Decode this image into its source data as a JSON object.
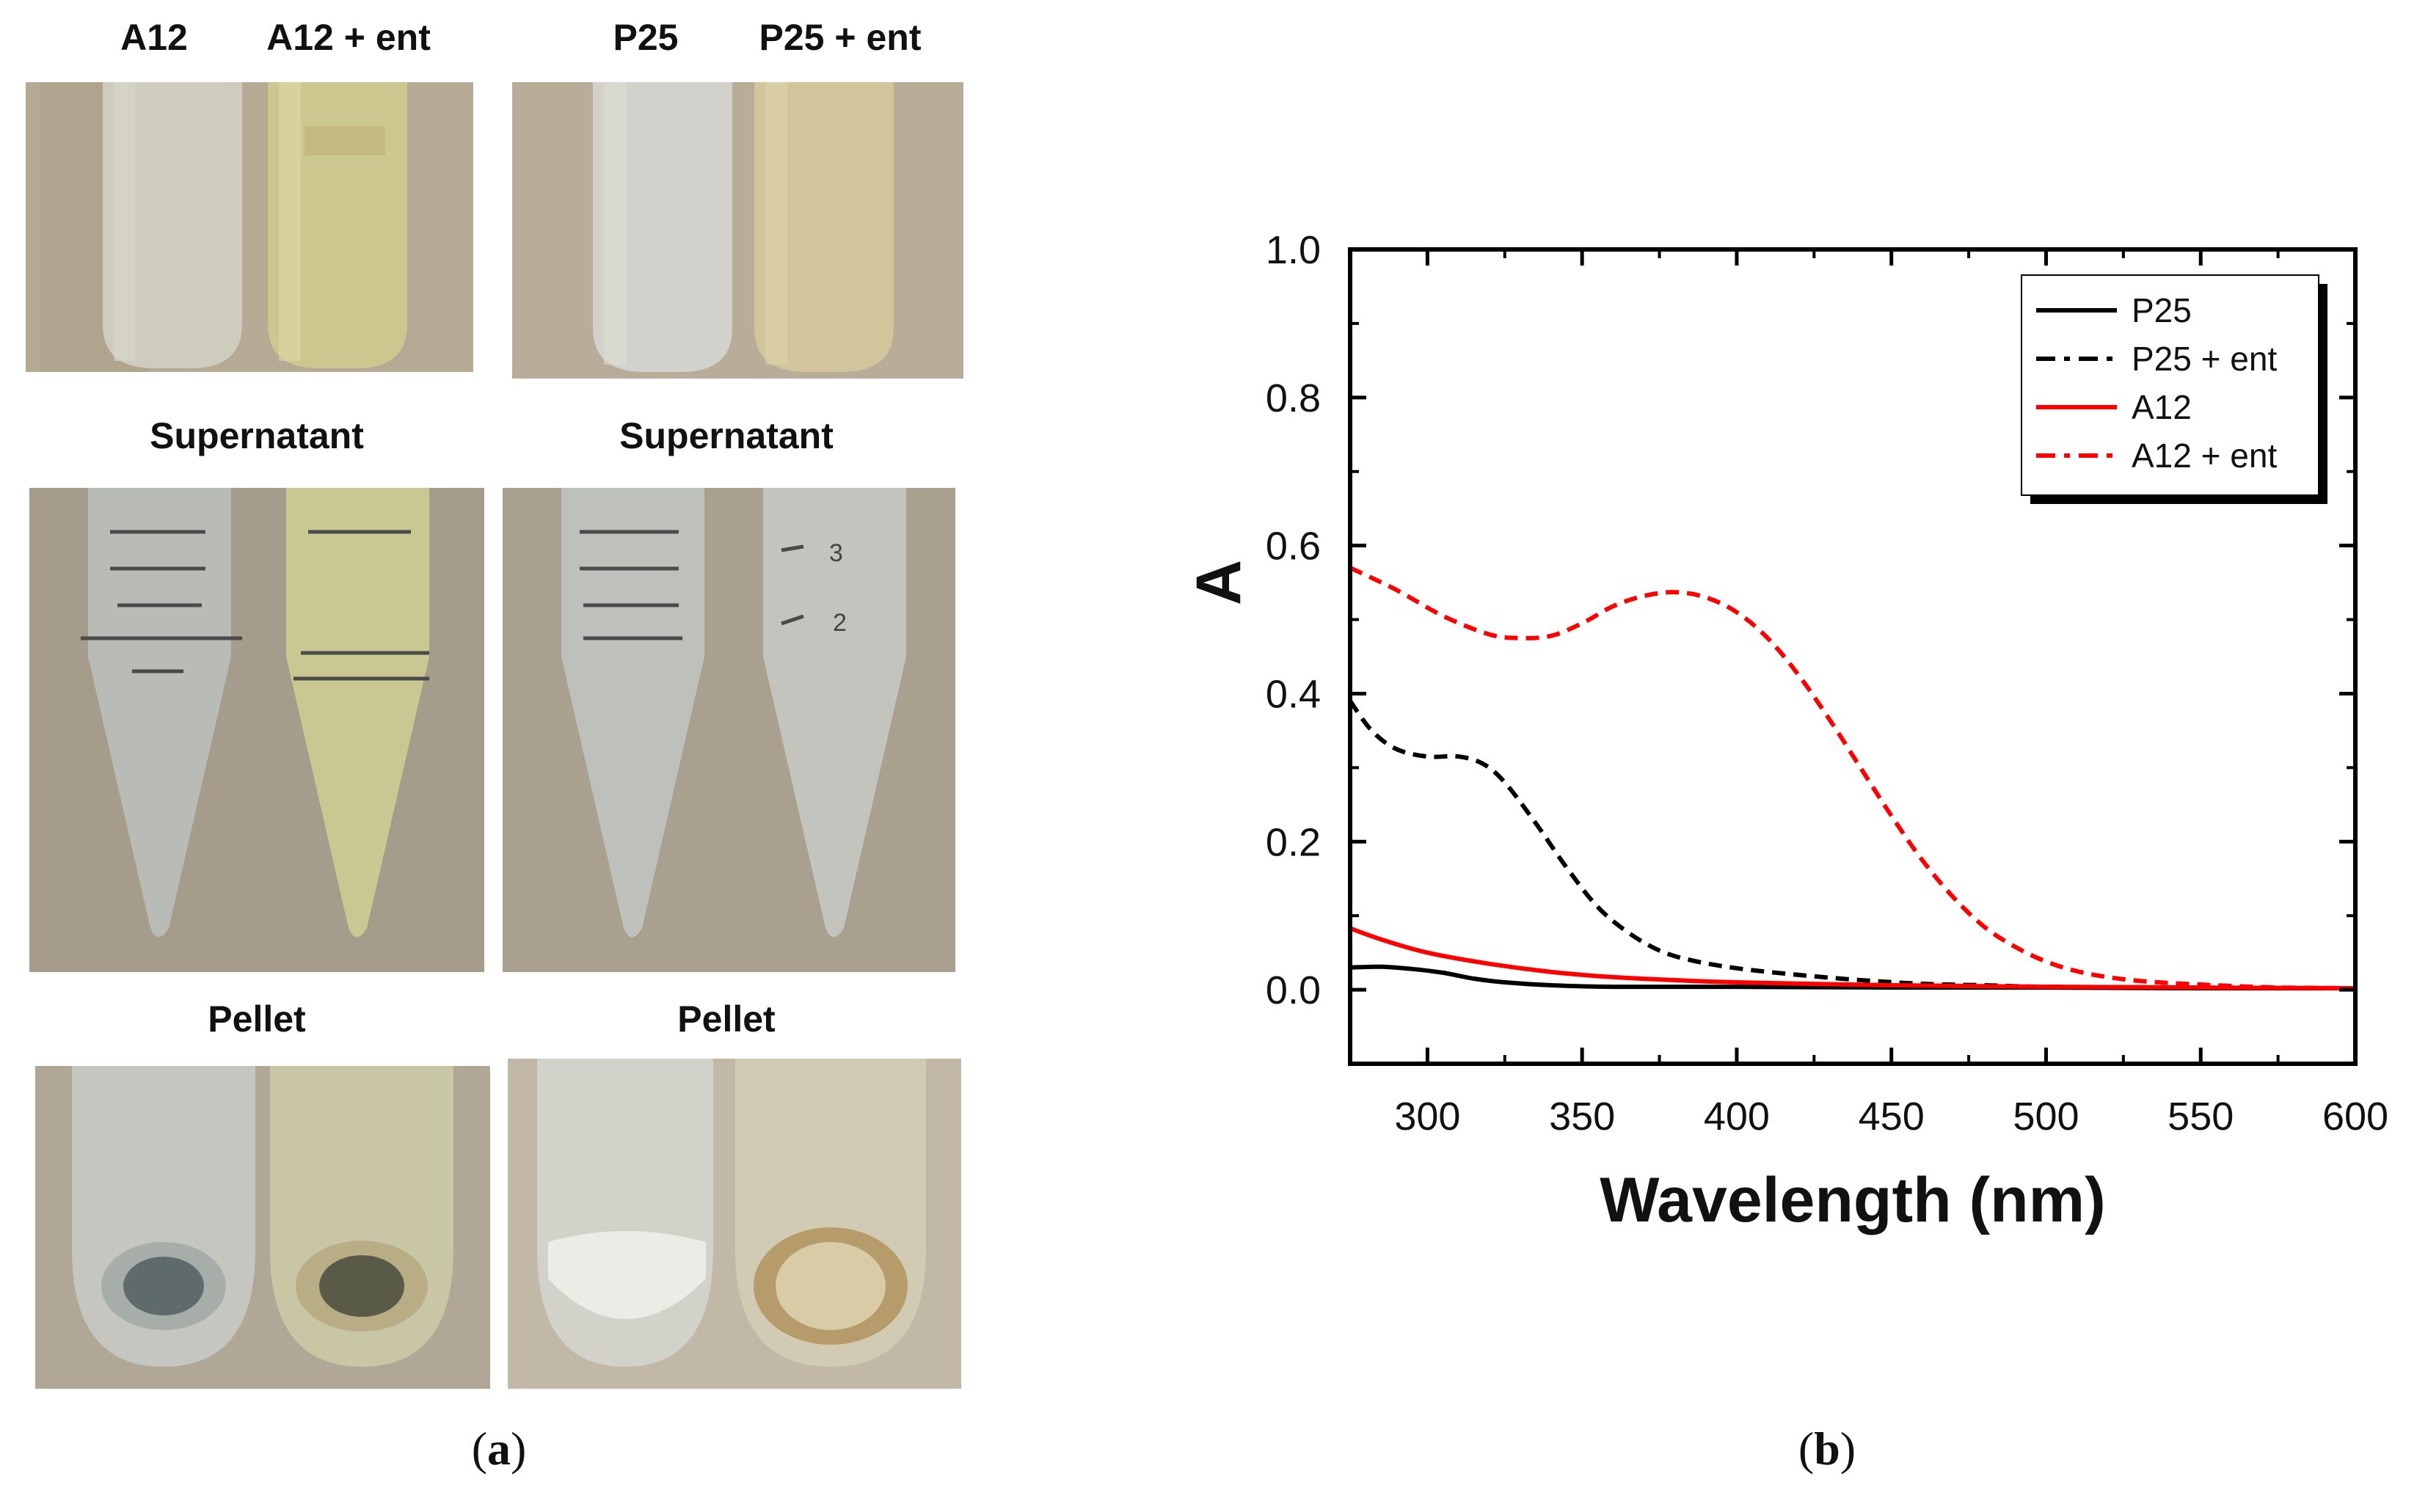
{
  "panel_a": {
    "caption_prefix": "(",
    "caption_letter": "a",
    "caption_suffix": ")",
    "row1_labels": [
      "A12",
      "A12 + ent",
      "P25",
      "P25 + ent"
    ],
    "row2_labels": [
      "Supernatant",
      "Supernatant"
    ],
    "row3_labels": [
      "Pellet",
      "Pellet"
    ],
    "tube_marks": [
      "3",
      "2"
    ]
  },
  "panel_b": {
    "caption_prefix": "(",
    "caption_letter": "b",
    "caption_suffix": ")"
  },
  "colors": {
    "black": "#000000",
    "red": "#ff0000",
    "photo_bg": "#b3a896",
    "yellow_tint": "#cfc98a"
  },
  "chart_data": {
    "type": "line",
    "xlabel": "Wavelength (nm)",
    "ylabel": "A",
    "xlim": [
      275,
      600
    ],
    "ylim": [
      -0.1,
      1.0
    ],
    "xticks": [
      300,
      350,
      400,
      450,
      500,
      550,
      600
    ],
    "xtick_labels": [
      "300",
      "350",
      "400",
      "450",
      "500",
      "550",
      "600"
    ],
    "yticks": [
      0.0,
      0.2,
      0.4,
      0.6,
      0.8,
      1.0
    ],
    "ytick_labels": [
      "0.0",
      "0.2",
      "0.4",
      "0.6",
      "0.8",
      "1.0"
    ],
    "legend_position": "top-right",
    "series": [
      {
        "name": "P25",
        "color": "#000000",
        "style": "solid",
        "x": [
          275,
          285,
          295,
          305,
          315,
          325,
          340,
          360,
          400,
          450,
          500,
          550,
          600
        ],
        "y": [
          0.03,
          0.031,
          0.028,
          0.023,
          0.015,
          0.01,
          0.006,
          0.004,
          0.004,
          0.003,
          0.003,
          0.002,
          0.002
        ]
      },
      {
        "name": "P25 + ent",
        "color": "#000000",
        "style": "dashdot",
        "x": [
          275,
          282,
          290,
          300,
          310,
          318,
          325,
          335,
          345,
          355,
          365,
          375,
          385,
          400,
          420,
          440,
          460,
          480,
          500,
          550,
          600
        ],
        "y": [
          0.39,
          0.35,
          0.325,
          0.315,
          0.315,
          0.305,
          0.28,
          0.225,
          0.165,
          0.112,
          0.077,
          0.053,
          0.04,
          0.029,
          0.02,
          0.013,
          0.008,
          0.006,
          0.004,
          0.003,
          0.002
        ]
      },
      {
        "name": "A12",
        "color": "#ff0000",
        "style": "solid",
        "x": [
          275,
          285,
          300,
          320,
          340,
          360,
          380,
          400,
          450,
          500,
          550,
          600
        ],
        "y": [
          0.083,
          0.068,
          0.05,
          0.035,
          0.024,
          0.017,
          0.013,
          0.01,
          0.006,
          0.004,
          0.003,
          0.002
        ]
      },
      {
        "name": "A12 + ent",
        "color": "#ff0000",
        "style": "dashdot",
        "x": [
          275,
          290,
          305,
          320,
          330,
          340,
          350,
          360,
          370,
          380,
          390,
          400,
          410,
          420,
          430,
          440,
          450,
          460,
          470,
          480,
          490,
          500,
          510,
          520,
          530,
          540,
          550,
          560,
          575,
          600
        ],
        "y": [
          0.57,
          0.54,
          0.505,
          0.48,
          0.475,
          0.478,
          0.495,
          0.518,
          0.532,
          0.537,
          0.53,
          0.51,
          0.475,
          0.425,
          0.365,
          0.3,
          0.235,
          0.175,
          0.125,
          0.085,
          0.058,
          0.038,
          0.025,
          0.017,
          0.012,
          0.009,
          0.007,
          0.005,
          0.003,
          0.002
        ]
      }
    ]
  }
}
